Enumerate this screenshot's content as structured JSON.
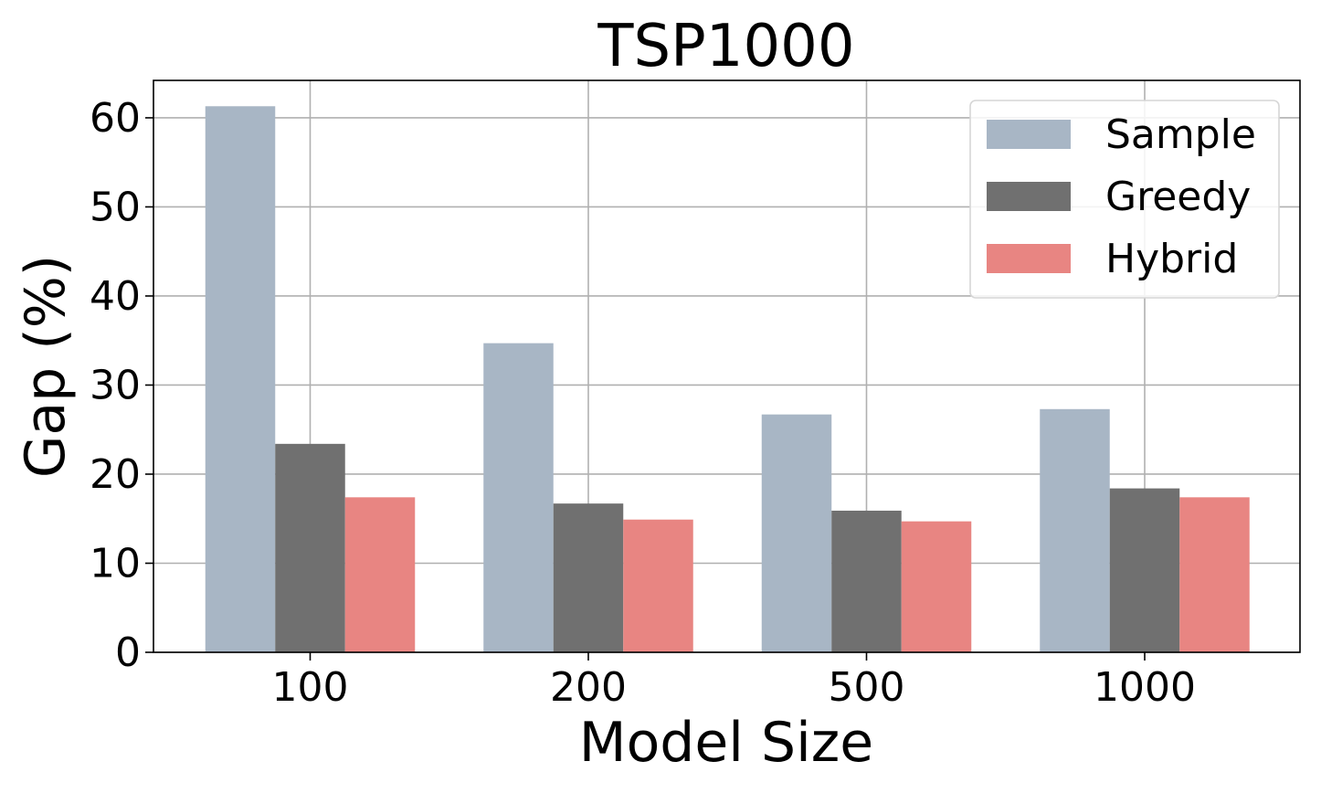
{
  "chart_data": {
    "type": "bar",
    "title": "TSP1000",
    "xlabel": "Model Size",
    "ylabel": "Gap (%)",
    "categories": [
      "100",
      "200",
      "500",
      "1000"
    ],
    "ylim": [
      0,
      64.2
    ],
    "yticks": [
      "0",
      "10",
      "20",
      "30",
      "40",
      "50",
      "60"
    ],
    "grid": true,
    "legend_position": "top-right",
    "series": [
      {
        "name": "Sample",
        "color": "#a8b6c5",
        "values": [
          61.3,
          34.7,
          26.7,
          27.3
        ]
      },
      {
        "name": "Greedy",
        "color": "#707070",
        "values": [
          23.4,
          16.7,
          15.9,
          18.4
        ]
      },
      {
        "name": "Hybrid",
        "color": "#e88582",
        "values": [
          17.4,
          14.9,
          14.7,
          17.4
        ]
      }
    ]
  }
}
